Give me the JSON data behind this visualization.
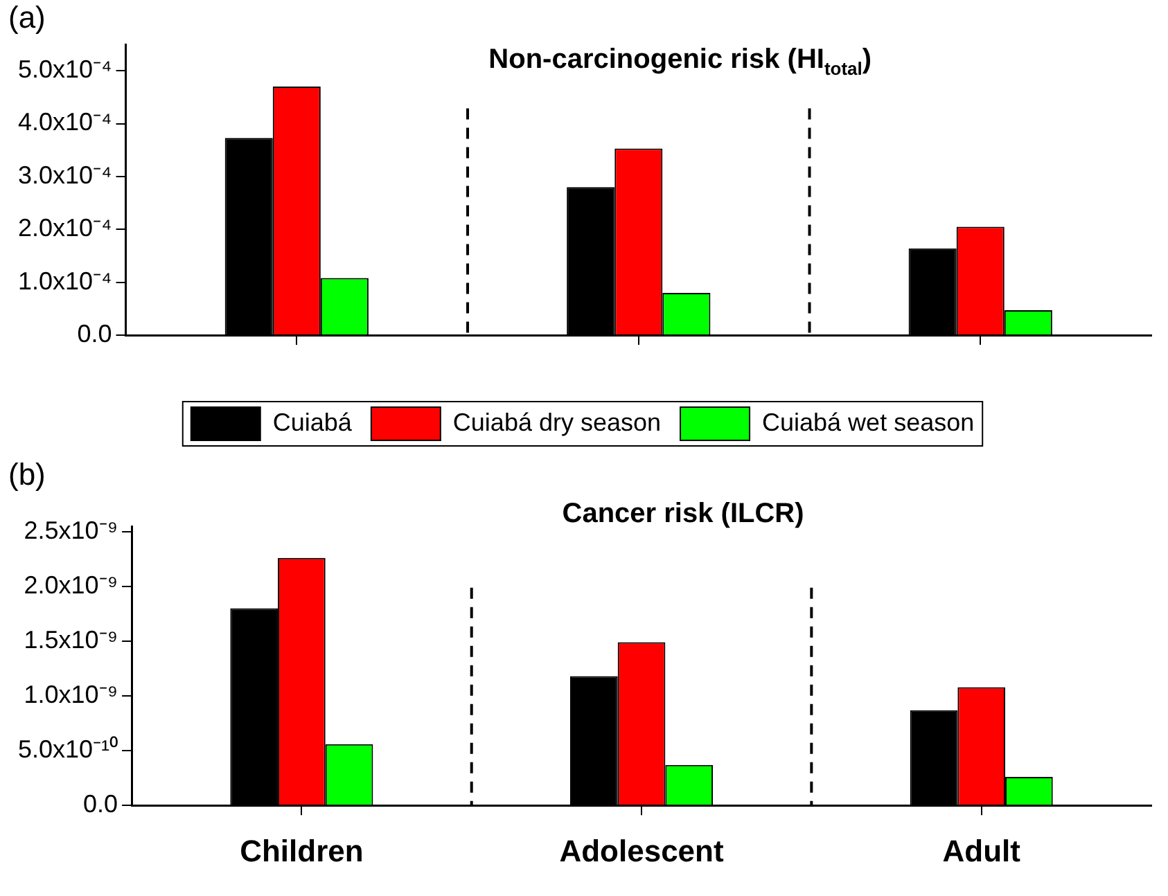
{
  "chart_data": [
    {
      "type": "bar",
      "title": "Non-carcinogenic risk (HI$_{total}$)",
      "annotations": [
        "(a)"
      ],
      "categories": [
        null,
        null,
        null
      ],
      "tick_labels": "y",
      "series": [
        {
          "color": "#000000",
          "values": [
            0.000373,
            0.00028,
            0.000164
          ]
        },
        {
          "color": "#ff0000",
          "values": [
            0.00047,
            0.000353,
            0.000205
          ]
        },
        {
          "color": "#00ff00",
          "values": [
            0.000108,
            8e-05,
            4.7e-05
          ]
        }
      ],
      "ylim": [
        0,
        0.00055
      ],
      "yticks": [
        {
          "value": 0,
          "label": "0.0"
        },
        {
          "value": 0.0001,
          "label": "1.0x10⁻⁴"
        },
        {
          "value": 0.0002,
          "label": "2.0x10⁻⁴"
        },
        {
          "value": 0.0003,
          "label": "3.0x10⁻⁴"
        },
        {
          "value": 0.0004,
          "label": "4.0x10⁻⁴"
        },
        {
          "value": 0.0005,
          "label": "5.0x10⁻⁴"
        }
      ],
      "grid": false,
      "legend": false
    },
    {
      "type": "bar",
      "title": "Cancer risk (ILCR)",
      "annotations": [
        "(b)"
      ],
      "categories": [
        "Children",
        "Adolescent",
        "Adult"
      ],
      "series": [
        {
          "name": "Cuiabá",
          "color": "#000000",
          "values": [
            1.8e-09,
            1.18e-09,
            8.7e-10
          ]
        },
        {
          "name": "Cuiabá dry season",
          "color": "#ff0000",
          "values": [
            2.26e-09,
            1.49e-09,
            1.08e-09
          ]
        },
        {
          "name": "Cuiabá wet season",
          "color": "#00ff00",
          "values": [
            5.6e-10,
            3.7e-10,
            2.6e-10
          ]
        }
      ],
      "ylim": [
        0,
        2.55e-09
      ],
      "yticks": [
        {
          "value": 0,
          "label": "0.0"
        },
        {
          "value": 5e-10,
          "label": "5.0x10⁻¹⁰"
        },
        {
          "value": 1e-09,
          "label": "1.0x10⁻⁹"
        },
        {
          "value": 1.5e-09,
          "label": "1.5x10⁻⁹"
        },
        {
          "value": 2e-09,
          "label": "2.0x10⁻⁹"
        },
        {
          "value": 2.5e-09,
          "label": "2.5x10⁻⁹"
        }
      ],
      "grid": false,
      "legend": "top"
    }
  ]
}
